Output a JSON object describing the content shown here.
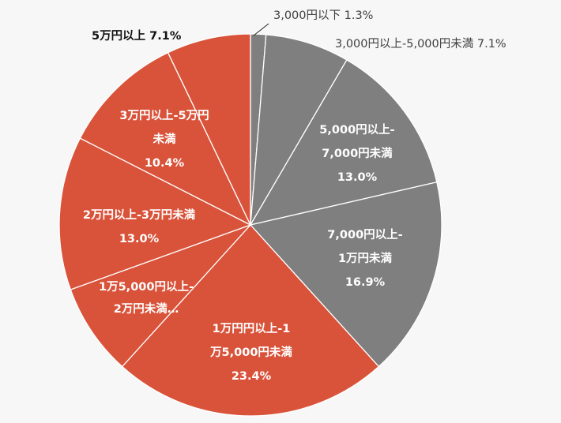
{
  "chart_data": {
    "type": "pie",
    "start_angle_deg": 0,
    "direction": "clockwise",
    "colors": {
      "gray": "#7f7f7f",
      "orange": "#d9533a",
      "separator": "#ffffff"
    },
    "slices": [
      {
        "label_lines": [
          "3,000円以下 1.3%"
        ],
        "value": 1.3,
        "color": "#7f7f7f"
      },
      {
        "label_lines": [
          "3,000円以上-5,000円未満 7.1%"
        ],
        "value": 7.1,
        "color": "#7f7f7f"
      },
      {
        "label_lines": [
          "5,000円以上-",
          "7,000円未満",
          "13.0%"
        ],
        "value": 13.0,
        "color": "#7f7f7f"
      },
      {
        "label_lines": [
          "7,000円以上-",
          "1万円未満",
          "16.9%"
        ],
        "value": 16.9,
        "color": "#7f7f7f"
      },
      {
        "label_lines": [
          "1万円円以上-1",
          "万5,000円未満",
          "23.4%"
        ],
        "value": 23.4,
        "color": "#d9533a"
      },
      {
        "label_lines": [
          "1万5,000円以上-",
          "2万円未満…"
        ],
        "value": 7.8,
        "color": "#d9533a"
      },
      {
        "label_lines": [
          "2万円以上-3万円未満",
          "13.0%"
        ],
        "value": 13.0,
        "color": "#d9533a"
      },
      {
        "label_lines": [
          "3万円以上-5万円",
          "未満",
          "10.4%"
        ],
        "value": 10.4,
        "color": "#d9533a"
      },
      {
        "label_lines": [
          "5万円以上 7.1%"
        ],
        "value": 7.1,
        "color": "#d9533a"
      }
    ]
  }
}
